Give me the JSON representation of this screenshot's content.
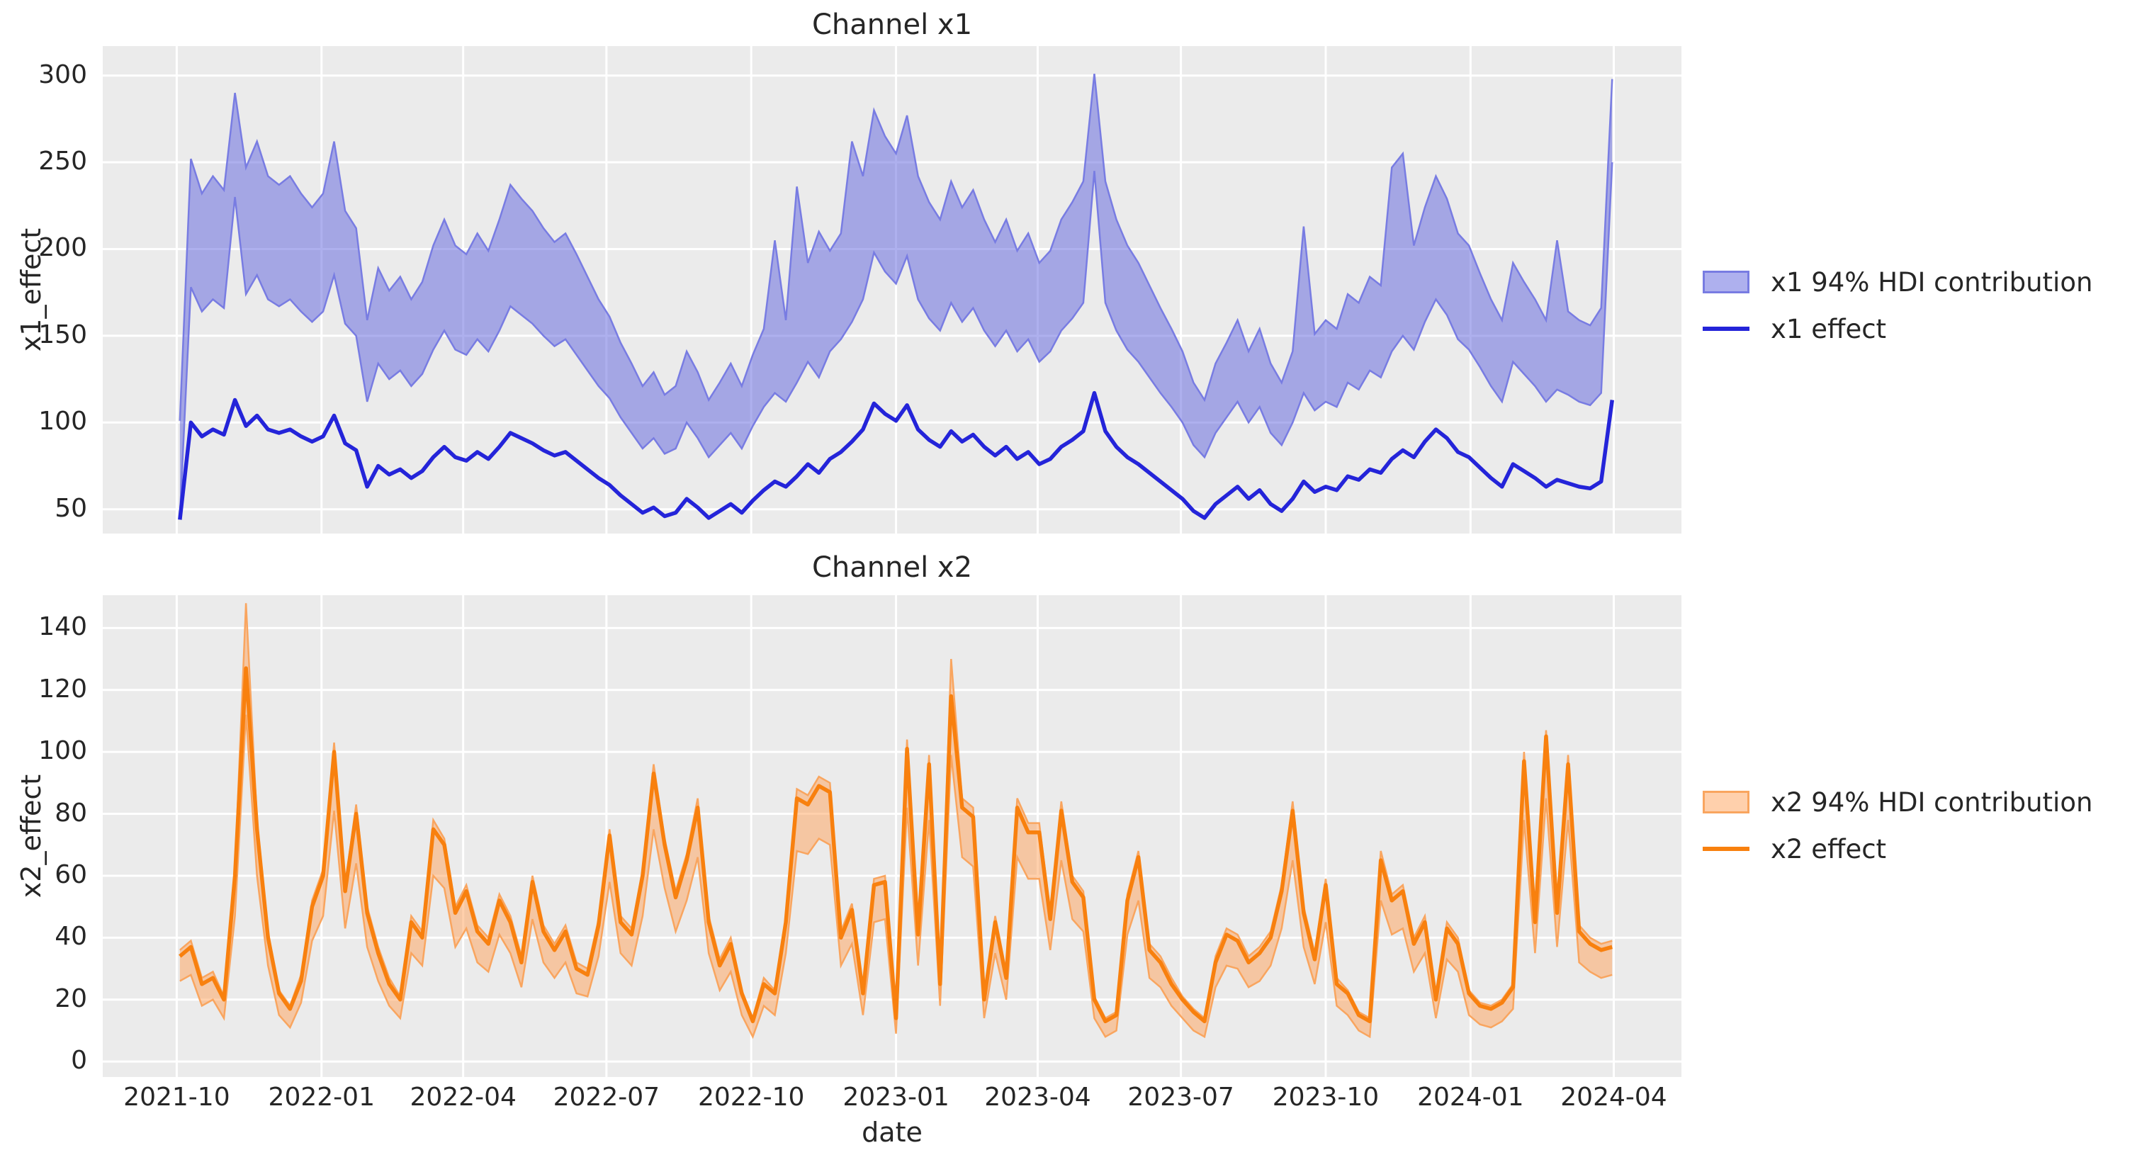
{
  "figure": {
    "xlabel": "date",
    "epoch": "2021-10-01"
  },
  "colors": {
    "x1_line": "#2424d9",
    "x1_band_fill": "#5d61de",
    "x1_band_fill_alpha": 0.5,
    "x1_band_edge": "#787ce2",
    "x2_line": "#f8800e",
    "x2_band_fill": "#ffa159",
    "x2_band_fill_alpha": 0.5,
    "x2_band_edge": "#f9a55f",
    "panel_bg": "#ebebeb",
    "grid": "#ffffff",
    "text": "#262626"
  },
  "chart_data": [
    {
      "type": "line",
      "title": "Channel x1",
      "ylabel": "x1_effect",
      "xlabel": "date",
      "grid": true,
      "legend_position": "right",
      "legend": [
        {
          "label": "x1 94% HDI contribution",
          "kind": "band"
        },
        {
          "label": "x1 effect",
          "kind": "line"
        }
      ],
      "ylim": [
        36,
        317
      ],
      "yticks": [
        50,
        100,
        150,
        200,
        250,
        300
      ],
      "xticks": [
        {
          "label": "2021-10",
          "day": 0
        },
        {
          "label": "2022-01",
          "day": 92
        },
        {
          "label": "2022-04",
          "day": 182
        },
        {
          "label": "2022-07",
          "day": 273
        },
        {
          "label": "2022-10",
          "day": 365
        },
        {
          "label": "2023-01",
          "day": 457
        },
        {
          "label": "2023-04",
          "day": 547
        },
        {
          "label": "2023-07",
          "day": 638
        },
        {
          "label": "2023-10",
          "day": 730
        },
        {
          "label": "2024-01",
          "day": 822
        },
        {
          "label": "2024-04",
          "day": 913
        }
      ],
      "series_start_day": 2,
      "series_step_days": 7,
      "series": [
        {
          "name": "x1 94% HDI contribution",
          "kind": "band",
          "lower": [
            46,
            178,
            164,
            171,
            166,
            230,
            174,
            185,
            171,
            167,
            171,
            164,
            158,
            164,
            185,
            157,
            150,
            112,
            134,
            125,
            130,
            121,
            128,
            142,
            153,
            142,
            139,
            148,
            141,
            153,
            167,
            162,
            157,
            150,
            144,
            148,
            139,
            130,
            121,
            114,
            103,
            94,
            85,
            91,
            82,
            85,
            100,
            91,
            80,
            87,
            94,
            85,
            98,
            109,
            117,
            112,
            123,
            135,
            126,
            141,
            148,
            158,
            171,
            198,
            187,
            180,
            196,
            171,
            160,
            153,
            169,
            158,
            166,
            153,
            144,
            153,
            141,
            148,
            135,
            141,
            153,
            160,
            169,
            245,
            169,
            153,
            142,
            135,
            126,
            117,
            109,
            100,
            87,
            80,
            94,
            103,
            112,
            100,
            109,
            94,
            87,
            100,
            117,
            107,
            112,
            109,
            123,
            119,
            130,
            126,
            141,
            150,
            142,
            158,
            171,
            162,
            148,
            142,
            132,
            121,
            112,
            135,
            128,
            121,
            112,
            119,
            116,
            112,
            110,
            117,
            250
          ],
          "upper": [
            101,
            252,
            232,
            242,
            234,
            290,
            247,
            262,
            242,
            237,
            242,
            232,
            224,
            232,
            262,
            222,
            212,
            159,
            189,
            176,
            184,
            171,
            181,
            202,
            217,
            202,
            197,
            209,
            199,
            217,
            237,
            229,
            222,
            212,
            204,
            209,
            197,
            184,
            171,
            161,
            146,
            134,
            121,
            129,
            116,
            121,
            141,
            129,
            113,
            123,
            134,
            121,
            139,
            154,
            205,
            159,
            236,
            192,
            210,
            199,
            209,
            262,
            242,
            280,
            265,
            255,
            277,
            242,
            227,
            217,
            239,
            224,
            234,
            217,
            204,
            217,
            199,
            209,
            192,
            199,
            217,
            227,
            239,
            301,
            239,
            217,
            202,
            192,
            179,
            166,
            154,
            141,
            123,
            113,
            134,
            146,
            159,
            141,
            154,
            134,
            123,
            141,
            213,
            151,
            159,
            154,
            174,
            169,
            184,
            179,
            247,
            255,
            202,
            224,
            242,
            229,
            209,
            202,
            186,
            171,
            159,
            192,
            181,
            171,
            159,
            205,
            164,
            159,
            156,
            166,
            298
          ]
        },
        {
          "name": "x1 effect",
          "kind": "line",
          "values": [
            44,
            100,
            92,
            96,
            93,
            113,
            98,
            104,
            96,
            94,
            96,
            92,
            89,
            92,
            104,
            88,
            84,
            63,
            75,
            70,
            73,
            68,
            72,
            80,
            86,
            80,
            78,
            83,
            79,
            86,
            94,
            91,
            88,
            84,
            81,
            83,
            78,
            73,
            68,
            64,
            58,
            53,
            48,
            51,
            46,
            48,
            56,
            51,
            45,
            49,
            53,
            48,
            55,
            61,
            66,
            63,
            69,
            76,
            71,
            79,
            83,
            89,
            96,
            111,
            105,
            101,
            110,
            96,
            90,
            86,
            95,
            89,
            93,
            86,
            81,
            86,
            79,
            83,
            76,
            79,
            86,
            90,
            95,
            117,
            95,
            86,
            80,
            76,
            71,
            66,
            61,
            56,
            49,
            45,
            53,
            58,
            63,
            56,
            61,
            53,
            49,
            56,
            66,
            60,
            63,
            61,
            69,
            67,
            73,
            71,
            79,
            84,
            80,
            89,
            96,
            91,
            83,
            80,
            74,
            68,
            63,
            76,
            72,
            68,
            63,
            67,
            65,
            63,
            62,
            66,
            113
          ]
        }
      ]
    },
    {
      "type": "line",
      "title": "Channel x2",
      "ylabel": "x2_effect",
      "xlabel": "date",
      "grid": true,
      "legend_position": "right",
      "legend": [
        {
          "label": "x2 94% HDI contribution",
          "kind": "band"
        },
        {
          "label": "x2 effect",
          "kind": "line"
        }
      ],
      "ylim": [
        -5,
        150.6
      ],
      "yticks": [
        0,
        20,
        40,
        60,
        80,
        100,
        120,
        140
      ],
      "xticks": [
        {
          "label": "2021-10",
          "day": 0
        },
        {
          "label": "2022-01",
          "day": 92
        },
        {
          "label": "2022-04",
          "day": 182
        },
        {
          "label": "2022-07",
          "day": 273
        },
        {
          "label": "2022-10",
          "day": 365
        },
        {
          "label": "2023-01",
          "day": 457
        },
        {
          "label": "2023-04",
          "day": 547
        },
        {
          "label": "2023-07",
          "day": 638
        },
        {
          "label": "2023-10",
          "day": 730
        },
        {
          "label": "2024-01",
          "day": 822
        },
        {
          "label": "2024-04",
          "day": 913
        }
      ],
      "series_start_day": 2,
      "series_step_days": 7,
      "series": [
        {
          "name": "x2 94% HDI contribution",
          "kind": "band",
          "lower": [
            26,
            28,
            18,
            20,
            14,
            47,
            112,
            60,
            31,
            15,
            11,
            19,
            39,
            47,
            81,
            43,
            64,
            37,
            26,
            18,
            14,
            35,
            31,
            60,
            56,
            37,
            43,
            32,
            29,
            41,
            35,
            24,
            46,
            32,
            27,
            32,
            22,
            21,
            34,
            58,
            35,
            31,
            47,
            75,
            56,
            42,
            52,
            66,
            35,
            23,
            29,
            15,
            8,
            18,
            15,
            35,
            68,
            67,
            72,
            70,
            31,
            38,
            15,
            45,
            46,
            9,
            82,
            31,
            78,
            18,
            99,
            66,
            63,
            14,
            35,
            20,
            66,
            59,
            59,
            36,
            65,
            46,
            42,
            14,
            8,
            10,
            41,
            52,
            27,
            24,
            18,
            14,
            10,
            8,
            24,
            31,
            30,
            24,
            26,
            31,
            43,
            65,
            37,
            25,
            45,
            18,
            15,
            10,
            8,
            52,
            41,
            43,
            29,
            35,
            14,
            33,
            29,
            15,
            12,
            11,
            13,
            17,
            78,
            35,
            85,
            37,
            78,
            32,
            29,
            27,
            28
          ],
          "upper": [
            36,
            39,
            27,
            29,
            21,
            62,
            148,
            78,
            42,
            23,
            18,
            28,
            52,
            62,
            103,
            57,
            83,
            50,
            37,
            27,
            21,
            47,
            42,
            78,
            72,
            50,
            57,
            44,
            40,
            54,
            47,
            34,
            60,
            44,
            38,
            44,
            32,
            30,
            46,
            75,
            47,
            43,
            62,
            96,
            72,
            55,
            67,
            85,
            47,
            33,
            40,
            23,
            14,
            27,
            23,
            47,
            88,
            86,
            92,
            90,
            42,
            51,
            23,
            59,
            60,
            15,
            104,
            43,
            99,
            27,
            130,
            85,
            82,
            21,
            47,
            29,
            85,
            77,
            77,
            48,
            84,
            60,
            55,
            21,
            14,
            16,
            54,
            68,
            38,
            34,
            27,
            21,
            17,
            14,
            34,
            43,
            41,
            34,
            37,
            42,
            57,
            84,
            50,
            35,
            59,
            27,
            23,
            16,
            14,
            68,
            54,
            57,
            40,
            47,
            21,
            45,
            40,
            23,
            19,
            18,
            20,
            25,
            100,
            47,
            107,
            50,
            99,
            44,
            40,
            38,
            39
          ]
        },
        {
          "name": "x2 effect",
          "kind": "line",
          "values": [
            34,
            37,
            25,
            27,
            20,
            60,
            127,
            75,
            40,
            22,
            17,
            26,
            50,
            60,
            100,
            55,
            80,
            48,
            35,
            25,
            20,
            45,
            40,
            75,
            70,
            48,
            55,
            42,
            38,
            52,
            45,
            32,
            58,
            42,
            36,
            42,
            30,
            28,
            44,
            73,
            45,
            41,
            60,
            93,
            70,
            53,
            65,
            82,
            45,
            31,
            38,
            22,
            13,
            25,
            22,
            45,
            85,
            83,
            89,
            87,
            40,
            49,
            22,
            57,
            58,
            14,
            101,
            41,
            96,
            25,
            118,
            82,
            79,
            20,
            45,
            27,
            82,
            74,
            74,
            46,
            81,
            58,
            53,
            20,
            13,
            15,
            52,
            66,
            36,
            32,
            25,
            20,
            16,
            13,
            32,
            41,
            39,
            32,
            35,
            40,
            55,
            81,
            48,
            33,
            57,
            25,
            22,
            15,
            13,
            65,
            52,
            55,
            38,
            45,
            20,
            43,
            38,
            22,
            18,
            17,
            19,
            24,
            97,
            45,
            105,
            48,
            96,
            42,
            38,
            36,
            37
          ]
        }
      ]
    }
  ]
}
